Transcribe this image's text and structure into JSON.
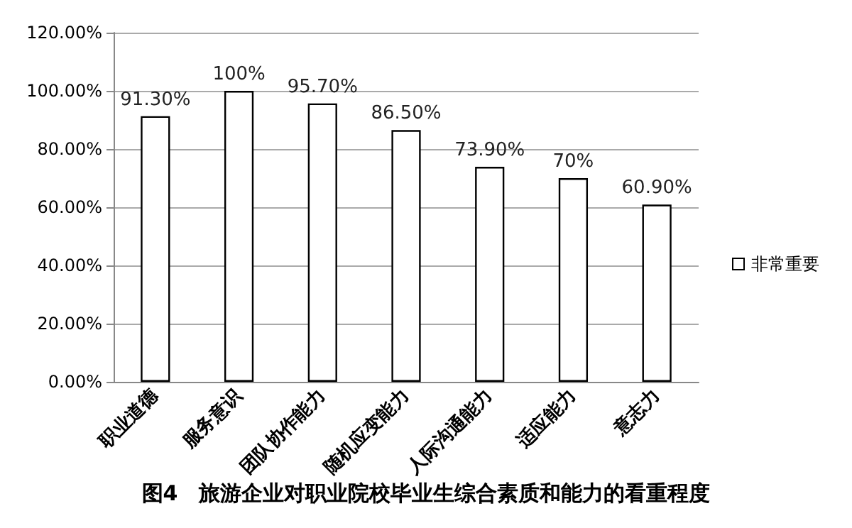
{
  "chart_data": {
    "type": "bar",
    "title": "图4　旅游企业对职业院校毕业生综合素质和能力的看重程度",
    "categories": [
      "职业道德",
      "服务意识",
      "团队协作能力",
      "随机应变能力",
      "人际沟通能力",
      "适应能力",
      "意志力"
    ],
    "series": [
      {
        "name": "非常重要",
        "color": "#ffffff",
        "values": [
          91.3,
          100,
          95.7,
          86.5,
          73.9,
          70,
          60.9
        ],
        "value_labels": [
          "91.30%",
          "100%",
          "95.70%",
          "86.50%",
          "73.90%",
          "70%",
          "60.90%"
        ]
      }
    ],
    "ylim": [
      0,
      120
    ],
    "yticks": [
      {
        "value": 0,
        "label": "0.00%"
      },
      {
        "value": 20,
        "label": "20.00%"
      },
      {
        "value": 40,
        "label": "40.00%"
      },
      {
        "value": 60,
        "label": "60.00%"
      },
      {
        "value": 80,
        "label": "80.00%"
      },
      {
        "value": 100,
        "label": "100.00%"
      },
      {
        "value": 120,
        "label": "120.00%"
      }
    ],
    "grid": "y",
    "legend": "right"
  }
}
